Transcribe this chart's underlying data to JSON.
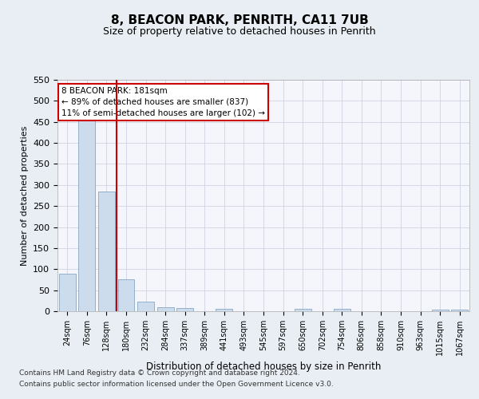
{
  "title": "8, BEACON PARK, PENRITH, CA11 7UB",
  "subtitle": "Size of property relative to detached houses in Penrith",
  "xlabel": "Distribution of detached houses by size in Penrith",
  "ylabel": "Number of detached properties",
  "categories": [
    "24sqm",
    "76sqm",
    "128sqm",
    "180sqm",
    "232sqm",
    "284sqm",
    "337sqm",
    "389sqm",
    "441sqm",
    "493sqm",
    "545sqm",
    "597sqm",
    "650sqm",
    "702sqm",
    "754sqm",
    "806sqm",
    "858sqm",
    "910sqm",
    "963sqm",
    "1015sqm",
    "1067sqm"
  ],
  "values": [
    90,
    460,
    285,
    75,
    22,
    10,
    8,
    0,
    5,
    0,
    0,
    0,
    5,
    0,
    5,
    0,
    0,
    0,
    0,
    4,
    4
  ],
  "bar_color": "#ccdcec",
  "bar_edge_color": "#7799bb",
  "red_line_index": 3,
  "annotation_line1": "8 BEACON PARK: 181sqm",
  "annotation_line2": "← 89% of detached houses are smaller (837)",
  "annotation_line3": "11% of semi-detached houses are larger (102) →",
  "ylim": [
    0,
    550
  ],
  "yticks": [
    0,
    50,
    100,
    150,
    200,
    250,
    300,
    350,
    400,
    450,
    500,
    550
  ],
  "footer1": "Contains HM Land Registry data © Crown copyright and database right 2024.",
  "footer2": "Contains public sector information licensed under the Open Government Licence v3.0.",
  "bg_color": "#e8eef4",
  "plot_bg_color": "#f4f6fc",
  "grid_color": "#c8ccdc",
  "title_fontsize": 11,
  "subtitle_fontsize": 9,
  "annotation_box_facecolor": "#ffffff",
  "annotation_box_edgecolor": "#cc0000",
  "red_line_color": "#cc0000"
}
